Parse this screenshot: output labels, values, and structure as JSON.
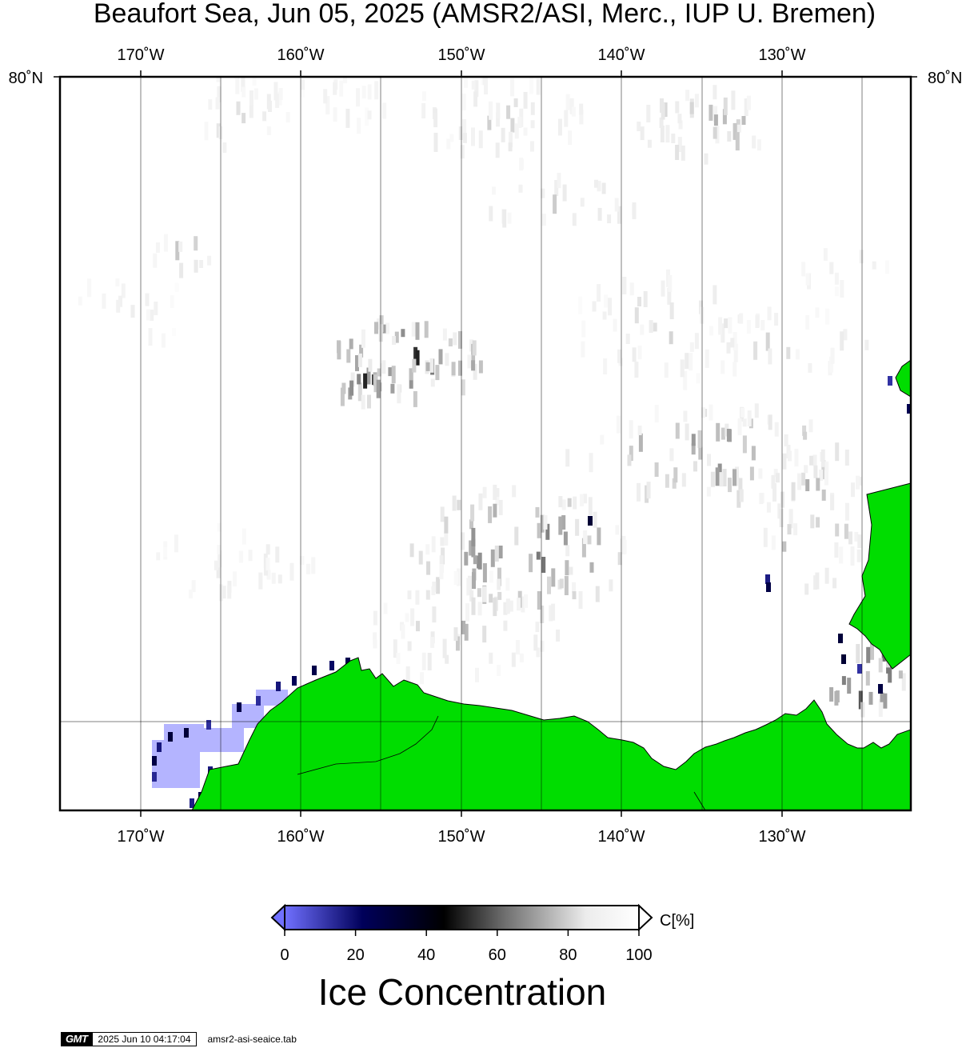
{
  "title": "Beaufort Sea, Jun 05, 2025 (AMSR2/ASI, Merc., IUP U. Bremen)",
  "map": {
    "projection": "Mercator",
    "region": "Beaufort Sea",
    "date": "Jun 05, 2025",
    "lon_ticks": [
      "170˚W",
      "160˚W",
      "150˚W",
      "140˚W",
      "130˚W"
    ],
    "lat_label_left": "80˚N",
    "lat_label_right": "80˚N",
    "colors": {
      "land": "#00dd00",
      "land_outline": "#000000",
      "open_water": "#ffffff",
      "frame": "#000000",
      "gridline": "#000000"
    }
  },
  "colorbar": {
    "unit_label": "C[%]",
    "tick_labels": [
      "0",
      "20",
      "40",
      "60",
      "80",
      "100"
    ],
    "title": "Ice Concentration",
    "stops": [
      "#7070ff",
      "#00005a",
      "#000000",
      "#6e6e6e",
      "#ececec",
      "#ffffff"
    ]
  },
  "footer": {
    "logo": "GMT",
    "timestamp": "2025 Jun 10 04:17:04",
    "filename": "amsr2-asi-seaice.tab"
  }
}
